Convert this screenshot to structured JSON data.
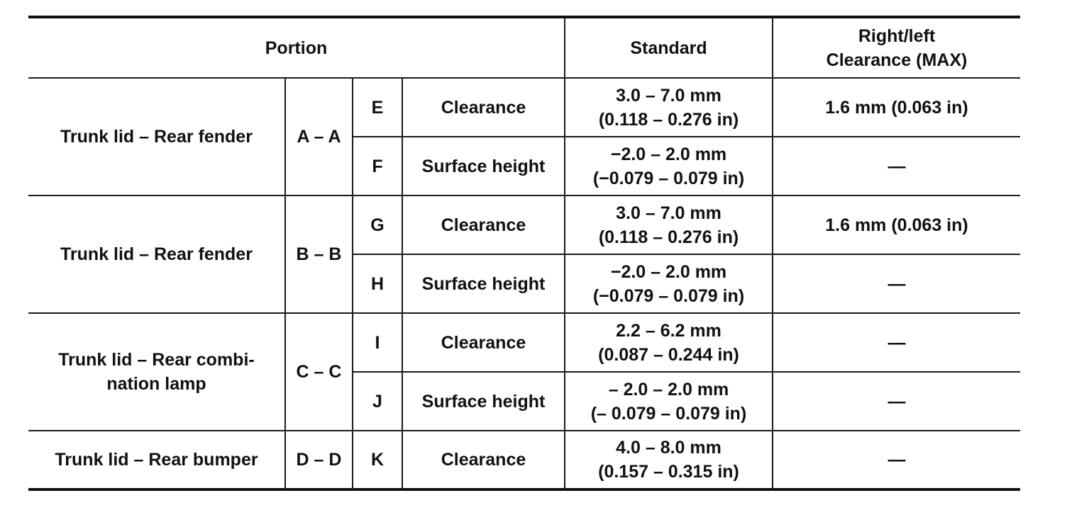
{
  "header": {
    "portion": "Portion",
    "standard": "Standard",
    "clearance_max_line1": "Right/left",
    "clearance_max_line2": "Clearance (MAX)"
  },
  "groups": [
    {
      "portion": "Trunk lid – Rear fender",
      "section": "A – A",
      "rows": [
        {
          "point": "E",
          "item": "Clearance",
          "std_mm": "3.0 – 7.0 mm",
          "std_in": "(0.118 – 0.276 in)",
          "max": "1.6 mm (0.063 in)"
        },
        {
          "point": "F",
          "item": "Surface height",
          "std_mm": "−2.0 – 2.0 mm",
          "std_in": "(−0.079 – 0.079 in)",
          "max": "—"
        }
      ]
    },
    {
      "portion": "Trunk lid – Rear fender",
      "section": "B – B",
      "rows": [
        {
          "point": "G",
          "item": "Clearance",
          "std_mm": "3.0 – 7.0 mm",
          "std_in": "(0.118 – 0.276 in)",
          "max": "1.6 mm (0.063 in)"
        },
        {
          "point": "H",
          "item": "Surface height",
          "std_mm": "−2.0 – 2.0 mm",
          "std_in": "(−0.079 – 0.079 in)",
          "max": "—"
        }
      ]
    },
    {
      "portion_line1": "Trunk lid – Rear combi-",
      "portion_line2": "nation lamp",
      "section": "C – C",
      "rows": [
        {
          "point": "I",
          "item": "Clearance",
          "std_mm": "2.2 – 6.2 mm",
          "std_in": "(0.087 – 0.244 in)",
          "max": "—"
        },
        {
          "point": "J",
          "item": "Surface height",
          "std_mm": "– 2.0 – 2.0 mm",
          "std_in": "(– 0.079 – 0.079 in)",
          "max": "—"
        }
      ]
    },
    {
      "portion": "Trunk lid – Rear bumper",
      "section": "D – D",
      "rows": [
        {
          "point": "K",
          "item": "Clearance",
          "std_mm": "4.0 – 8.0 mm",
          "std_in": "(0.157 – 0.315 in)",
          "max": "—"
        }
      ]
    }
  ]
}
